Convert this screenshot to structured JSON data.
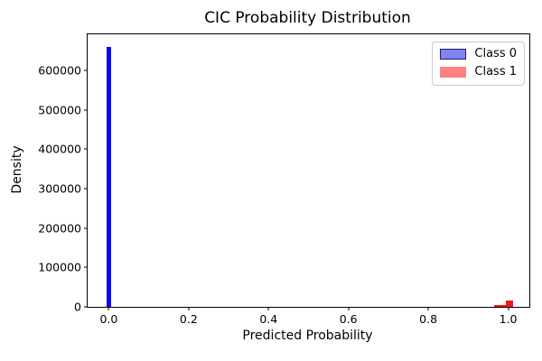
{
  "chart": {
    "title": "CIC Probability Distribution",
    "xlabel": "Predicted Probability",
    "ylabel": "Density"
  },
  "legend": {
    "position": "upper-right",
    "items": [
      {
        "label": "Class 0",
        "fill": "#8182f4",
        "border": "#20205a"
      },
      {
        "label": "Class 1",
        "fill": "#fc8181",
        "border": "#fc8181"
      }
    ]
  },
  "chart_data": {
    "type": "bar",
    "subtype": "histogram",
    "title": "CIC Probability Distribution",
    "xlabel": "Predicted Probability",
    "ylabel": "Density",
    "grid": false,
    "legend_position": "upper right",
    "xlim": [
      -0.053,
      1.053
    ],
    "ylim": [
      0,
      692000
    ],
    "xticks": [
      0.0,
      0.2,
      0.4,
      0.6,
      0.8,
      1.0
    ],
    "xtick_labels": [
      "0.0",
      "0.2",
      "0.4",
      "0.6",
      "0.8",
      "1.0"
    ],
    "yticks": [
      0,
      100000,
      200000,
      300000,
      400000,
      500000,
      600000
    ],
    "ytick_labels": [
      "0",
      "100000",
      "200000",
      "300000",
      "400000",
      "500000",
      "600000"
    ],
    "series": [
      {
        "name": "Class 0",
        "color": "#0a0ae8",
        "bars": [
          {
            "x0": -0.0045,
            "x1": 0.0055,
            "density": 660000
          }
        ]
      },
      {
        "name": "Class 1",
        "color": "#f51616",
        "bars": [
          {
            "x0": 0.965,
            "x1": 1.012,
            "density": 3800
          },
          {
            "x0": 0.994,
            "x1": 1.012,
            "density": 15000
          }
        ]
      }
    ]
  }
}
